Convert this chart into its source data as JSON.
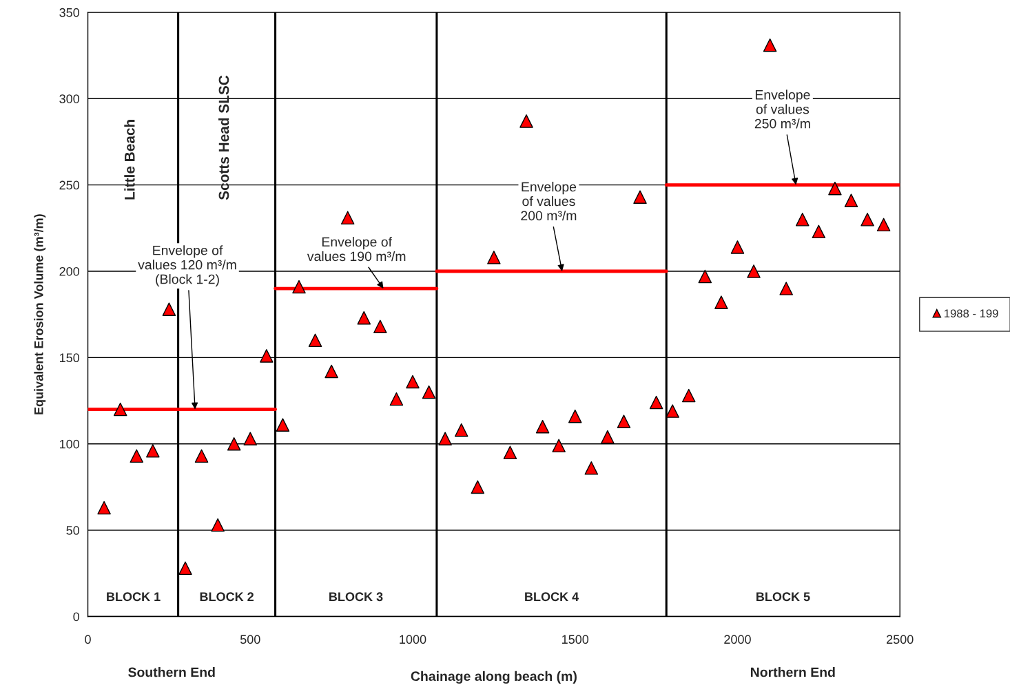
{
  "chart_data": {
    "type": "scatter",
    "xlabel": "Chainage along beach (m)",
    "ylabel": "Equivalent Erosion Volume (m³/m)",
    "xlim": [
      0,
      2500
    ],
    "xticks": [
      0,
      500,
      1000,
      1500,
      2000,
      2500
    ],
    "ylim": [
      0,
      350
    ],
    "yticks": [
      0,
      50,
      100,
      150,
      200,
      250,
      300,
      350
    ],
    "grid": "y",
    "legend": "right",
    "series": [
      {
        "name": "1988 - 199",
        "marker": "triangle",
        "color": "#ff0000",
        "x": [
          50,
          100,
          150,
          200,
          250,
          300,
          350,
          400,
          450,
          500,
          550,
          600,
          650,
          700,
          750,
          800,
          850,
          900,
          950,
          1000,
          1050,
          1100,
          1150,
          1200,
          1250,
          1300,
          1350,
          1400,
          1450,
          1500,
          1550,
          1600,
          1650,
          1700,
          1750,
          1800,
          1850,
          1900,
          1950,
          2000,
          2050,
          2100,
          2150,
          2200,
          2250,
          2300,
          2350,
          2400,
          2450
        ],
        "values": [
          63,
          120,
          93,
          96,
          178,
          28,
          93,
          53,
          100,
          103,
          151,
          111,
          191,
          160,
          142,
          231,
          173,
          168,
          126,
          136,
          130,
          103,
          108,
          75,
          208,
          95,
          287,
          110,
          99,
          116,
          86,
          104,
          113,
          243,
          124,
          119,
          128,
          197,
          182,
          214,
          200,
          331,
          190,
          230,
          223,
          248,
          241,
          230,
          227
        ]
      },
      {
        "type": "line",
        "color": "#ff0000",
        "x": [
          0,
          577
        ],
        "values": [
          120,
          120
        ]
      },
      {
        "type": "line",
        "color": "#ff0000",
        "x": [
          577,
          1074
        ],
        "values": [
          190,
          190
        ]
      },
      {
        "type": "line",
        "color": "#ff0000",
        "x": [
          1074,
          1781
        ],
        "values": [
          200,
          200
        ]
      },
      {
        "type": "line",
        "color": "#ff0000",
        "x": [
          1781,
          2500
        ],
        "values": [
          250,
          250
        ]
      }
    ],
    "ref_lines": [
      {
        "axis": "x",
        "value": 278,
        "color": "#000000"
      },
      {
        "axis": "x",
        "value": 577,
        "color": "#000000"
      },
      {
        "axis": "x",
        "value": 1074,
        "color": "#000000"
      },
      {
        "axis": "x",
        "value": 1781,
        "color": "#000000"
      }
    ],
    "annotations": [
      "Little Beach",
      "Scotts Head SLSC",
      "BLOCK 1",
      "BLOCK 2",
      "BLOCK 3",
      "BLOCK 4",
      "BLOCK 5",
      "Southern End",
      "Northern End",
      {
        "text": "Envelope of\nvalues 120 m³/m\n(Block 1-2)",
        "x": 330,
        "y": 120
      },
      {
        "text": "Envelope of\nvalues 190 m³/m",
        "x": 910,
        "y": 190
      },
      {
        "text": "Envelope\nof values\n200 m³/m",
        "x": 1460,
        "y": 200
      },
      {
        "text": "Envelope\nof values\n250 m³/m",
        "x": 2180,
        "y": 250
      }
    ]
  }
}
